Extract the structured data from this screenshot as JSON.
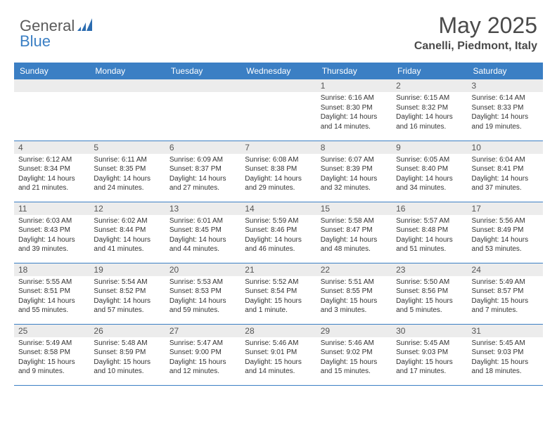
{
  "brand": {
    "part1": "General",
    "part2": "Blue"
  },
  "title": "May 2025",
  "location": "Canelli, Piedmont, Italy",
  "colors": {
    "header_bg": "#3b7fc4",
    "header_text": "#ffffff",
    "daynum_bg": "#ececec",
    "border": "#3b7fc4",
    "body_text": "#333333",
    "title_text": "#4a4a4a"
  },
  "weekdays": [
    "Sunday",
    "Monday",
    "Tuesday",
    "Wednesday",
    "Thursday",
    "Friday",
    "Saturday"
  ],
  "weeks": [
    [
      null,
      null,
      null,
      null,
      {
        "n": "1",
        "sr": "Sunrise: 6:16 AM",
        "ss": "Sunset: 8:30 PM",
        "d1": "Daylight: 14 hours",
        "d2": "and 14 minutes."
      },
      {
        "n": "2",
        "sr": "Sunrise: 6:15 AM",
        "ss": "Sunset: 8:32 PM",
        "d1": "Daylight: 14 hours",
        "d2": "and 16 minutes."
      },
      {
        "n": "3",
        "sr": "Sunrise: 6:14 AM",
        "ss": "Sunset: 8:33 PM",
        "d1": "Daylight: 14 hours",
        "d2": "and 19 minutes."
      }
    ],
    [
      {
        "n": "4",
        "sr": "Sunrise: 6:12 AM",
        "ss": "Sunset: 8:34 PM",
        "d1": "Daylight: 14 hours",
        "d2": "and 21 minutes."
      },
      {
        "n": "5",
        "sr": "Sunrise: 6:11 AM",
        "ss": "Sunset: 8:35 PM",
        "d1": "Daylight: 14 hours",
        "d2": "and 24 minutes."
      },
      {
        "n": "6",
        "sr": "Sunrise: 6:09 AM",
        "ss": "Sunset: 8:37 PM",
        "d1": "Daylight: 14 hours",
        "d2": "and 27 minutes."
      },
      {
        "n": "7",
        "sr": "Sunrise: 6:08 AM",
        "ss": "Sunset: 8:38 PM",
        "d1": "Daylight: 14 hours",
        "d2": "and 29 minutes."
      },
      {
        "n": "8",
        "sr": "Sunrise: 6:07 AM",
        "ss": "Sunset: 8:39 PM",
        "d1": "Daylight: 14 hours",
        "d2": "and 32 minutes."
      },
      {
        "n": "9",
        "sr": "Sunrise: 6:05 AM",
        "ss": "Sunset: 8:40 PM",
        "d1": "Daylight: 14 hours",
        "d2": "and 34 minutes."
      },
      {
        "n": "10",
        "sr": "Sunrise: 6:04 AM",
        "ss": "Sunset: 8:41 PM",
        "d1": "Daylight: 14 hours",
        "d2": "and 37 minutes."
      }
    ],
    [
      {
        "n": "11",
        "sr": "Sunrise: 6:03 AM",
        "ss": "Sunset: 8:43 PM",
        "d1": "Daylight: 14 hours",
        "d2": "and 39 minutes."
      },
      {
        "n": "12",
        "sr": "Sunrise: 6:02 AM",
        "ss": "Sunset: 8:44 PM",
        "d1": "Daylight: 14 hours",
        "d2": "and 41 minutes."
      },
      {
        "n": "13",
        "sr": "Sunrise: 6:01 AM",
        "ss": "Sunset: 8:45 PM",
        "d1": "Daylight: 14 hours",
        "d2": "and 44 minutes."
      },
      {
        "n": "14",
        "sr": "Sunrise: 5:59 AM",
        "ss": "Sunset: 8:46 PM",
        "d1": "Daylight: 14 hours",
        "d2": "and 46 minutes."
      },
      {
        "n": "15",
        "sr": "Sunrise: 5:58 AM",
        "ss": "Sunset: 8:47 PM",
        "d1": "Daylight: 14 hours",
        "d2": "and 48 minutes."
      },
      {
        "n": "16",
        "sr": "Sunrise: 5:57 AM",
        "ss": "Sunset: 8:48 PM",
        "d1": "Daylight: 14 hours",
        "d2": "and 51 minutes."
      },
      {
        "n": "17",
        "sr": "Sunrise: 5:56 AM",
        "ss": "Sunset: 8:49 PM",
        "d1": "Daylight: 14 hours",
        "d2": "and 53 minutes."
      }
    ],
    [
      {
        "n": "18",
        "sr": "Sunrise: 5:55 AM",
        "ss": "Sunset: 8:51 PM",
        "d1": "Daylight: 14 hours",
        "d2": "and 55 minutes."
      },
      {
        "n": "19",
        "sr": "Sunrise: 5:54 AM",
        "ss": "Sunset: 8:52 PM",
        "d1": "Daylight: 14 hours",
        "d2": "and 57 minutes."
      },
      {
        "n": "20",
        "sr": "Sunrise: 5:53 AM",
        "ss": "Sunset: 8:53 PM",
        "d1": "Daylight: 14 hours",
        "d2": "and 59 minutes."
      },
      {
        "n": "21",
        "sr": "Sunrise: 5:52 AM",
        "ss": "Sunset: 8:54 PM",
        "d1": "Daylight: 15 hours",
        "d2": "and 1 minute."
      },
      {
        "n": "22",
        "sr": "Sunrise: 5:51 AM",
        "ss": "Sunset: 8:55 PM",
        "d1": "Daylight: 15 hours",
        "d2": "and 3 minutes."
      },
      {
        "n": "23",
        "sr": "Sunrise: 5:50 AM",
        "ss": "Sunset: 8:56 PM",
        "d1": "Daylight: 15 hours",
        "d2": "and 5 minutes."
      },
      {
        "n": "24",
        "sr": "Sunrise: 5:49 AM",
        "ss": "Sunset: 8:57 PM",
        "d1": "Daylight: 15 hours",
        "d2": "and 7 minutes."
      }
    ],
    [
      {
        "n": "25",
        "sr": "Sunrise: 5:49 AM",
        "ss": "Sunset: 8:58 PM",
        "d1": "Daylight: 15 hours",
        "d2": "and 9 minutes."
      },
      {
        "n": "26",
        "sr": "Sunrise: 5:48 AM",
        "ss": "Sunset: 8:59 PM",
        "d1": "Daylight: 15 hours",
        "d2": "and 10 minutes."
      },
      {
        "n": "27",
        "sr": "Sunrise: 5:47 AM",
        "ss": "Sunset: 9:00 PM",
        "d1": "Daylight: 15 hours",
        "d2": "and 12 minutes."
      },
      {
        "n": "28",
        "sr": "Sunrise: 5:46 AM",
        "ss": "Sunset: 9:01 PM",
        "d1": "Daylight: 15 hours",
        "d2": "and 14 minutes."
      },
      {
        "n": "29",
        "sr": "Sunrise: 5:46 AM",
        "ss": "Sunset: 9:02 PM",
        "d1": "Daylight: 15 hours",
        "d2": "and 15 minutes."
      },
      {
        "n": "30",
        "sr": "Sunrise: 5:45 AM",
        "ss": "Sunset: 9:03 PM",
        "d1": "Daylight: 15 hours",
        "d2": "and 17 minutes."
      },
      {
        "n": "31",
        "sr": "Sunrise: 5:45 AM",
        "ss": "Sunset: 9:03 PM",
        "d1": "Daylight: 15 hours",
        "d2": "and 18 minutes."
      }
    ]
  ]
}
